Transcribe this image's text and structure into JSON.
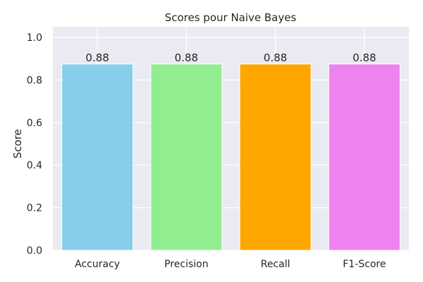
{
  "chart_data": {
    "type": "bar",
    "title": "Scores pour Naive Bayes",
    "xlabel": "",
    "ylabel": "Score",
    "categories": [
      "Accuracy",
      "Precision",
      "Recall",
      "F1-Score"
    ],
    "values": [
      0.875,
      0.875,
      0.875,
      0.875
    ],
    "data_labels": [
      "0.88",
      "0.88",
      "0.88",
      "0.88"
    ],
    "colors": [
      "#87ceeb",
      "#90ee90",
      "#ffa500",
      "#ee82ee"
    ],
    "ylim": [
      0,
      1.05
    ],
    "yticks": [
      0.0,
      0.2,
      0.4,
      0.6,
      0.8,
      1.0
    ],
    "ytick_labels": [
      "0.0",
      "0.2",
      "0.4",
      "0.6",
      "0.8",
      "1.0"
    ],
    "grid": true,
    "plot_background": "#eaeaf2",
    "grid_color": "#ffffff"
  }
}
